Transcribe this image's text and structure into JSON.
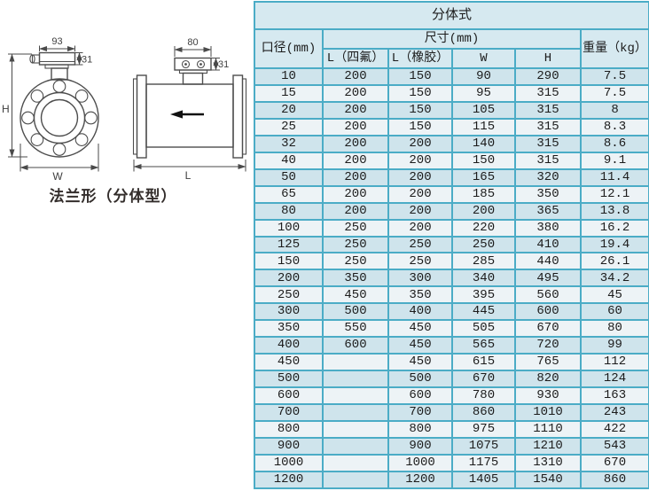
{
  "diagram": {
    "caption": "法兰形（分体型）",
    "front_view": {
      "box_width": "93",
      "box_height": "31",
      "height_label": "H",
      "width_label": "W"
    },
    "side_view": {
      "box_width": "80",
      "box_height": "31",
      "length_label": "L"
    }
  },
  "table": {
    "title": "分体式",
    "col_diameter": "口径(mm)",
    "col_size": "尺寸(mm)",
    "col_weight": "重量（kg）",
    "sub_columns": [
      "L（四氟）",
      "L（橡胶）",
      "W",
      "H"
    ],
    "rows": [
      [
        "10",
        "200",
        "150",
        "90",
        "290",
        "7.5"
      ],
      [
        "15",
        "200",
        "150",
        "95",
        "315",
        "7.5"
      ],
      [
        "20",
        "200",
        "150",
        "105",
        "315",
        "8"
      ],
      [
        "25",
        "200",
        "150",
        "115",
        "315",
        "8.3"
      ],
      [
        "32",
        "200",
        "200",
        "140",
        "315",
        "8.6"
      ],
      [
        "40",
        "200",
        "200",
        "150",
        "315",
        "9.1"
      ],
      [
        "50",
        "200",
        "200",
        "165",
        "320",
        "11.4"
      ],
      [
        "65",
        "200",
        "200",
        "185",
        "350",
        "12.1"
      ],
      [
        "80",
        "200",
        "200",
        "200",
        "365",
        "13.8"
      ],
      [
        "100",
        "250",
        "200",
        "220",
        "380",
        "16.2"
      ],
      [
        "125",
        "250",
        "250",
        "250",
        "410",
        "19.4"
      ],
      [
        "150",
        "250",
        "250",
        "285",
        "440",
        "26.1"
      ],
      [
        "200",
        "350",
        "300",
        "340",
        "495",
        "34.2"
      ],
      [
        "250",
        "450",
        "350",
        "395",
        "560",
        "45"
      ],
      [
        "300",
        "500",
        "400",
        "445",
        "600",
        "60"
      ],
      [
        "350",
        "550",
        "450",
        "505",
        "670",
        "80"
      ],
      [
        "400",
        "600",
        "450",
        "565",
        "720",
        "99"
      ],
      [
        "450",
        "",
        "450",
        "615",
        "765",
        "112"
      ],
      [
        "500",
        "",
        "500",
        "670",
        "820",
        "124"
      ],
      [
        "600",
        "",
        "600",
        "780",
        "930",
        "163"
      ],
      [
        "700",
        "",
        "700",
        "860",
        "1010",
        "243"
      ],
      [
        "800",
        "",
        "800",
        "975",
        "1110",
        "422"
      ],
      [
        "900",
        "",
        "900",
        "1075",
        "1210",
        "543"
      ],
      [
        "1000",
        "",
        "1000",
        "1175",
        "1310",
        "670"
      ],
      [
        "1200",
        "",
        "1200",
        "1405",
        "1540",
        "860"
      ]
    ]
  },
  "colors": {
    "table_border": "#4bacc6",
    "header_bg": "#d6e9f0",
    "row_blue_bg": "#cfe4ec",
    "row_light_bg": "#edf3f6",
    "drawing_stroke": "#4d4d4d"
  }
}
